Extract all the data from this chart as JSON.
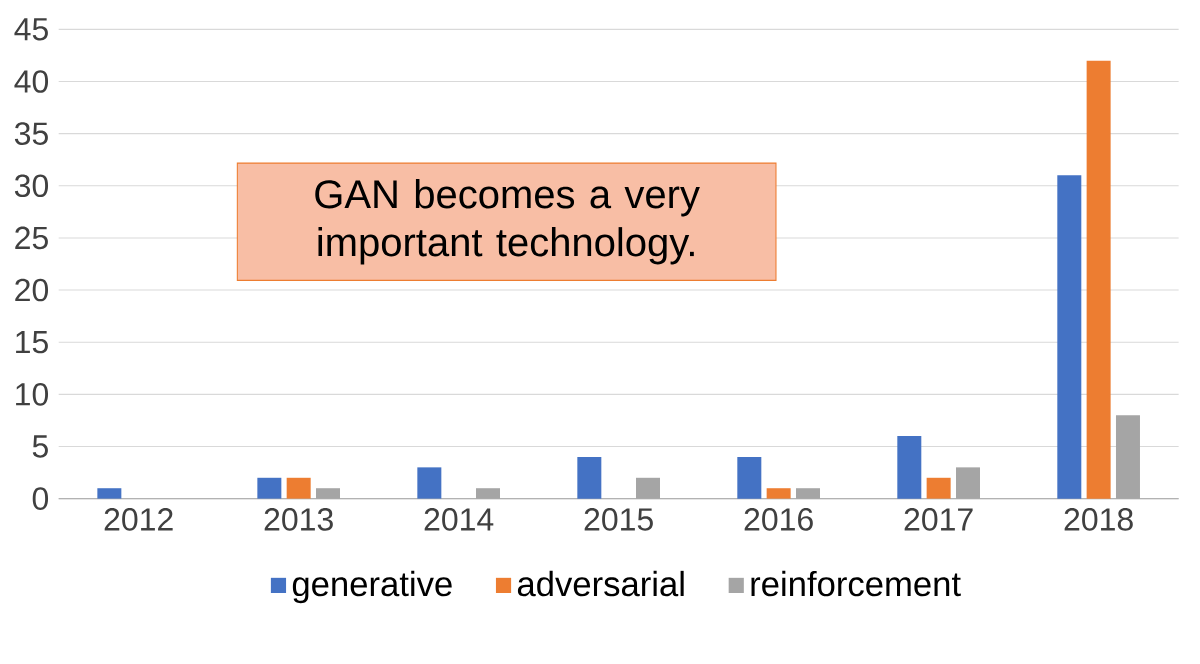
{
  "chart_data": {
    "type": "bar",
    "categories": [
      "2012",
      "2013",
      "2014",
      "2015",
      "2016",
      "2017",
      "2018"
    ],
    "series": [
      {
        "name": "generative",
        "color": "#4472c4",
        "values": [
          1,
          2,
          3,
          4,
          4,
          6,
          31
        ]
      },
      {
        "name": "adversarial",
        "color": "#ed7d31",
        "values": [
          0,
          2,
          0,
          0,
          1,
          2,
          42
        ]
      },
      {
        "name": "reinforcement",
        "color": "#a5a5a5",
        "values": [
          0,
          1,
          1,
          2,
          1,
          3,
          8
        ]
      }
    ],
    "ylim": [
      0,
      45
    ],
    "yticks": [
      0,
      5,
      10,
      15,
      20,
      25,
      30,
      35,
      40,
      45
    ],
    "grid": "y",
    "legend": "bottom",
    "annotations": [
      "GAN becomes a very important technology."
    ]
  }
}
